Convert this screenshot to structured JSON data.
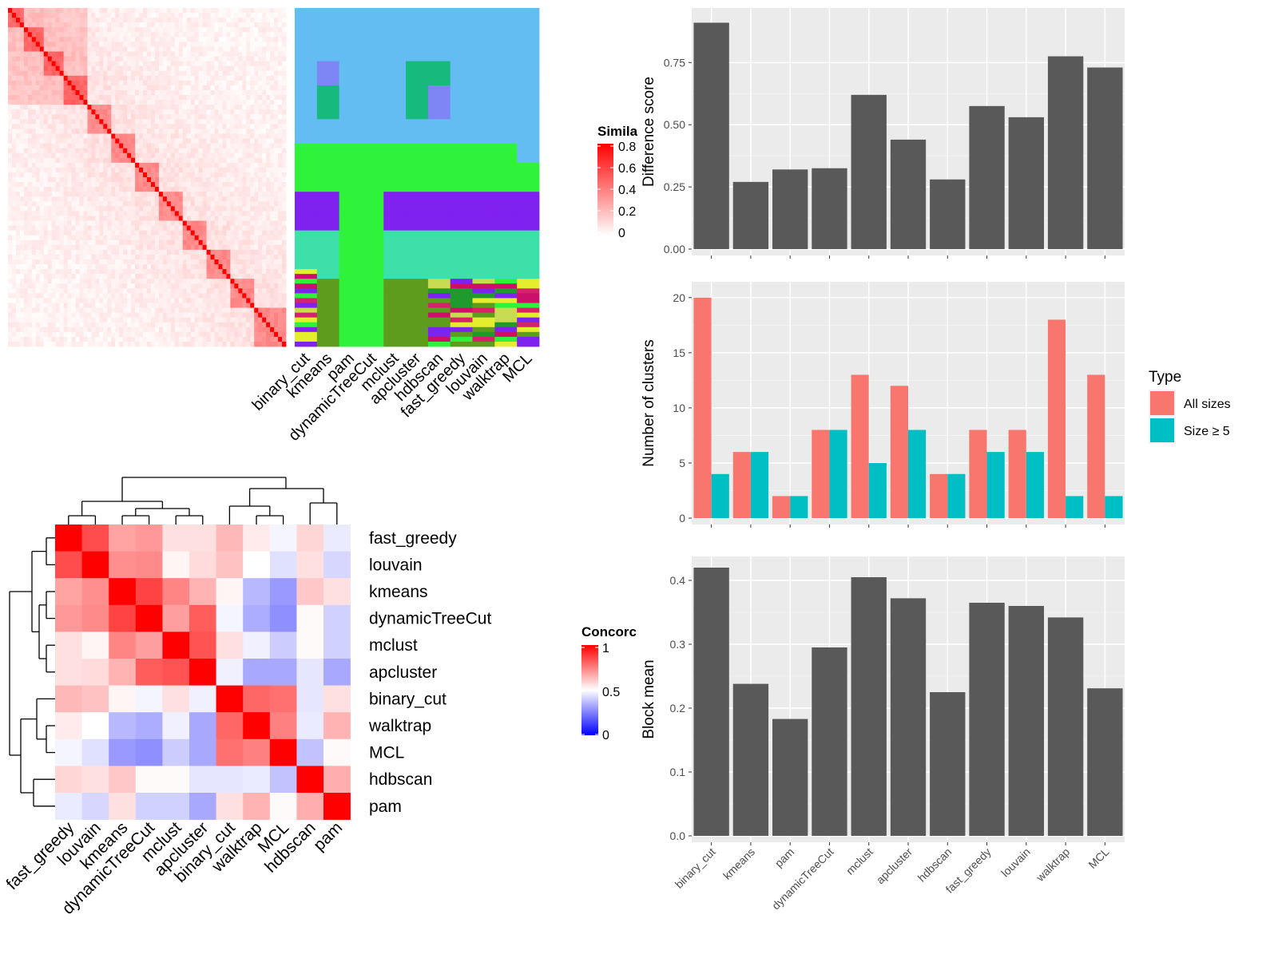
{
  "methods_order_a": [
    "binary_cut",
    "kmeans",
    "pam",
    "dynamicTreeCut",
    "mclust",
    "apcluster",
    "hdbscan",
    "fast_greedy",
    "louvain",
    "walktrap",
    "MCL"
  ],
  "legend_similarity": {
    "title": "Simila",
    "ticks": [
      "0.8",
      "0.6",
      "0.4",
      "0.2",
      "0"
    ]
  },
  "legend_concordance": {
    "title": "Concorc",
    "ticks": [
      "1",
      "0.5",
      "0"
    ]
  },
  "cluster_colors": [
    "#64bdf2",
    "#2ef33a",
    "#7f21ef",
    "#3de0a8",
    "#5d9c1d",
    "#d4236a",
    "#c7dc51",
    "#7d86f4",
    "#16ba7d",
    "#cc0f6b",
    "#1f9a2c",
    "#e5ed2f"
  ],
  "concordance": {
    "methods": [
      "fast_greedy",
      "louvain",
      "kmeans",
      "dynamicTreeCut",
      "mclust",
      "apcluster",
      "binary_cut",
      "walktrap",
      "MCL",
      "hdbscan",
      "pam"
    ],
    "matrix": [
      [
        1.0,
        0.85,
        0.68,
        0.7,
        0.56,
        0.56,
        0.64,
        0.54,
        0.48,
        0.58,
        0.46
      ],
      [
        0.85,
        1.0,
        0.72,
        0.73,
        0.52,
        0.57,
        0.62,
        0.5,
        0.44,
        0.56,
        0.42
      ],
      [
        0.68,
        0.72,
        1.0,
        0.87,
        0.74,
        0.65,
        0.52,
        0.36,
        0.3,
        0.61,
        0.56
      ],
      [
        0.7,
        0.73,
        0.87,
        1.0,
        0.69,
        0.82,
        0.48,
        0.34,
        0.28,
        0.51,
        0.41
      ],
      [
        0.56,
        0.52,
        0.74,
        0.69,
        1.0,
        0.84,
        0.56,
        0.47,
        0.4,
        0.51,
        0.41
      ],
      [
        0.56,
        0.57,
        0.65,
        0.82,
        0.84,
        1.0,
        0.47,
        0.33,
        0.33,
        0.45,
        0.33
      ],
      [
        0.64,
        0.62,
        0.52,
        0.48,
        0.56,
        0.47,
        1.0,
        0.8,
        0.78,
        0.45,
        0.56
      ],
      [
        0.54,
        0.5,
        0.36,
        0.34,
        0.47,
        0.33,
        0.8,
        1.0,
        0.75,
        0.46,
        0.65
      ],
      [
        0.48,
        0.44,
        0.3,
        0.28,
        0.4,
        0.33,
        0.78,
        0.75,
        1.0,
        0.38,
        0.51
      ],
      [
        0.58,
        0.56,
        0.61,
        0.51,
        0.51,
        0.45,
        0.45,
        0.46,
        0.38,
        1.0,
        0.66
      ],
      [
        0.46,
        0.42,
        0.56,
        0.41,
        0.41,
        0.33,
        0.56,
        0.65,
        0.51,
        0.66,
        1.0
      ]
    ]
  },
  "chart_data": [
    {
      "type": "bar",
      "categories": [
        "binary_cut",
        "kmeans",
        "pam",
        "dynamicTreeCut",
        "mclust",
        "apcluster",
        "hdbscan",
        "fast_greedy",
        "louvain",
        "walktrap",
        "MCL"
      ],
      "values": [
        0.91,
        0.27,
        0.32,
        0.325,
        0.62,
        0.44,
        0.28,
        0.575,
        0.53,
        0.775,
        0.73
      ],
      "ylabel": "Difference score",
      "ylim": [
        0,
        0.95
      ],
      "yticks": [
        "0.00",
        "0.25",
        "0.50",
        "0.75"
      ],
      "grid": true
    },
    {
      "type": "bar",
      "categories": [
        "binary_cut",
        "kmeans",
        "pam",
        "dynamicTreeCut",
        "mclust",
        "apcluster",
        "hdbscan",
        "fast_greedy",
        "louvain",
        "walktrap",
        "MCL"
      ],
      "series": [
        {
          "name": "All sizes",
          "color": "#f8766d",
          "values": [
            20,
            6,
            2,
            8,
            13,
            12,
            4,
            8,
            8,
            18,
            13
          ]
        },
        {
          "name": "Size ≥ 5",
          "color": "#00bfc4",
          "values": [
            4,
            6,
            2,
            8,
            5,
            8,
            4,
            6,
            6,
            2,
            2
          ]
        }
      ],
      "ylabel": "Number of clusters",
      "ylim": [
        0,
        21
      ],
      "yticks": [
        "0",
        "5",
        "10",
        "15",
        "20"
      ],
      "legend": {
        "title": "Type",
        "position": "right"
      },
      "grid": true
    },
    {
      "type": "bar",
      "categories": [
        "binary_cut",
        "kmeans",
        "pam",
        "dynamicTreeCut",
        "mclust",
        "apcluster",
        "hdbscan",
        "fast_greedy",
        "louvain",
        "walktrap",
        "MCL"
      ],
      "values": [
        0.42,
        0.238,
        0.183,
        0.295,
        0.405,
        0.372,
        0.225,
        0.365,
        0.36,
        0.342,
        0.231
      ],
      "ylabel": "Block mean",
      "ylim": [
        0,
        0.43
      ],
      "yticks": [
        "0.0",
        "0.1",
        "0.2",
        "0.3",
        "0.4"
      ],
      "grid": true
    }
  ]
}
